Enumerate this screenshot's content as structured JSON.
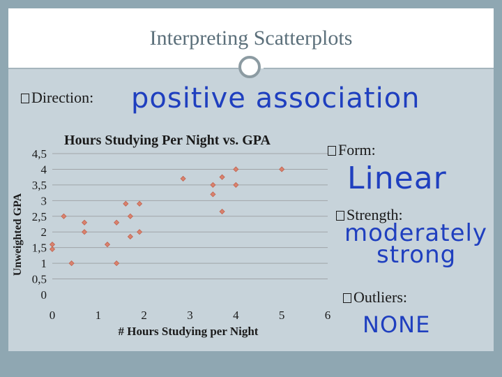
{
  "slide": {
    "title": "Interpreting Scatterplots"
  },
  "direction": {
    "label": "Direction:",
    "answer": "positive association"
  },
  "form": {
    "label": "Form:",
    "answer": "Linear"
  },
  "strength": {
    "label": "Strength:",
    "answer_line1": "moderately",
    "answer_line2": "strong"
  },
  "outliers": {
    "label": "Outliers:",
    "answer": "NONE"
  },
  "colors": {
    "point": "#d9826e",
    "grid": "#a0a4a8",
    "handwriting": "#1f3fbf",
    "title": "#5b6f7a"
  },
  "chart_data": {
    "type": "scatter",
    "title": "Hours Studying Per Night vs. GPA",
    "xlabel": "# Hours Studying per Night",
    "ylabel": "Unweighted GPA",
    "xlim": [
      0,
      6
    ],
    "ylim": [
      0,
      4.5
    ],
    "x_ticks": [
      "0",
      "1",
      "2",
      "3",
      "4",
      "5",
      "6"
    ],
    "y_ticks": [
      "0",
      "0,5",
      "1",
      "1,5",
      "2",
      "2,5",
      "3",
      "3,5",
      "4",
      "4,5"
    ],
    "grid": true,
    "legend": "none",
    "points": [
      {
        "x": 0.0,
        "y": 1.6
      },
      {
        "x": 0.0,
        "y": 1.45
      },
      {
        "x": 0.25,
        "y": 2.5
      },
      {
        "x": 0.42,
        "y": 1.0
      },
      {
        "x": 0.7,
        "y": 2.3
      },
      {
        "x": 0.7,
        "y": 2.0
      },
      {
        "x": 1.2,
        "y": 1.6
      },
      {
        "x": 1.4,
        "y": 2.3
      },
      {
        "x": 1.4,
        "y": 1.0
      },
      {
        "x": 1.6,
        "y": 2.9
      },
      {
        "x": 1.7,
        "y": 2.5
      },
      {
        "x": 1.7,
        "y": 1.85
      },
      {
        "x": 1.9,
        "y": 2.0
      },
      {
        "x": 1.9,
        "y": 2.9
      },
      {
        "x": 2.85,
        "y": 3.7
      },
      {
        "x": 3.5,
        "y": 3.5
      },
      {
        "x": 3.5,
        "y": 3.2
      },
      {
        "x": 3.7,
        "y": 3.75
      },
      {
        "x": 3.7,
        "y": 2.65
      },
      {
        "x": 4.0,
        "y": 4.0
      },
      {
        "x": 4.0,
        "y": 3.5
      },
      {
        "x": 5.0,
        "y": 4.0
      }
    ]
  }
}
